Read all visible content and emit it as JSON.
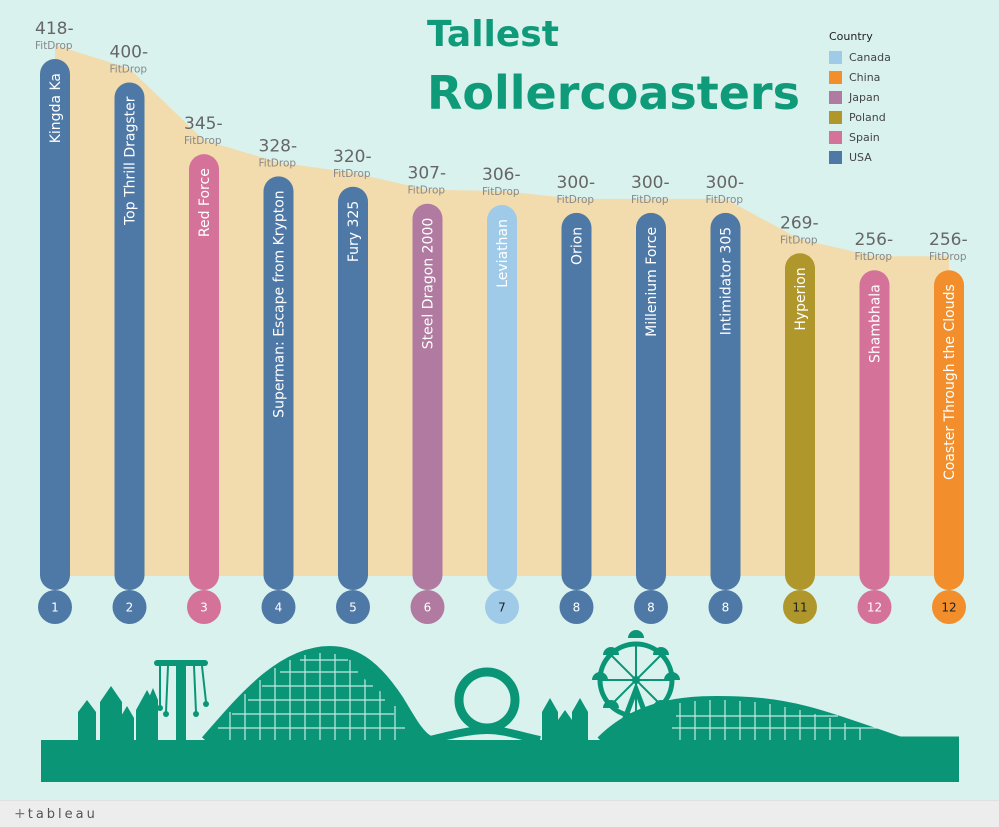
{
  "title_line1": "Tallest",
  "title_line2": "Rollercoasters",
  "legend": {
    "title": "Country",
    "items": [
      {
        "label": "Canada",
        "color": "#a0cbe8"
      },
      {
        "label": "China",
        "color": "#f28e2b"
      },
      {
        "label": "Japan",
        "color": "#b07aa1"
      },
      {
        "label": "Poland",
        "color": "#b0972b"
      },
      {
        "label": "Spain",
        "color": "#d4729a"
      },
      {
        "label": "USA",
        "color": "#4e79a7"
      }
    ]
  },
  "footer": {
    "logo_text": "tableau",
    "logo_mark": "+"
  },
  "chart_data": {
    "type": "bar",
    "unit_label": "FitDrop",
    "categories": [
      "Kingda Ka",
      "Top Thrill Dragster",
      "Red Force",
      "Superman: Escape from Krypton",
      "Fury 325",
      "Steel Dragon 2000",
      "Leviathan",
      "Orion",
      "Millenium Force",
      "Intimidator 305",
      "Hyperion",
      "Shambhala",
      "Coaster Through the Clouds"
    ],
    "values": [
      418,
      400,
      345,
      328,
      320,
      307,
      306,
      300,
      300,
      300,
      269,
      256,
      256
    ],
    "value_labels": [
      "418-",
      "400-",
      "345-",
      "328-",
      "320-",
      "307-",
      "306-",
      "300-",
      "300-",
      "300-",
      "269-",
      "256-",
      "256-"
    ],
    "ranks": [
      "1",
      "2",
      "3",
      "4",
      "5",
      "6",
      "7",
      "8",
      "8",
      "8",
      "11",
      "12",
      "12"
    ],
    "countries": [
      "USA",
      "USA",
      "Spain",
      "USA",
      "USA",
      "Japan",
      "Canada",
      "USA",
      "USA",
      "USA",
      "Poland",
      "Spain",
      "China"
    ],
    "legend_title": "Country",
    "ylim": [
      0,
      418
    ]
  }
}
